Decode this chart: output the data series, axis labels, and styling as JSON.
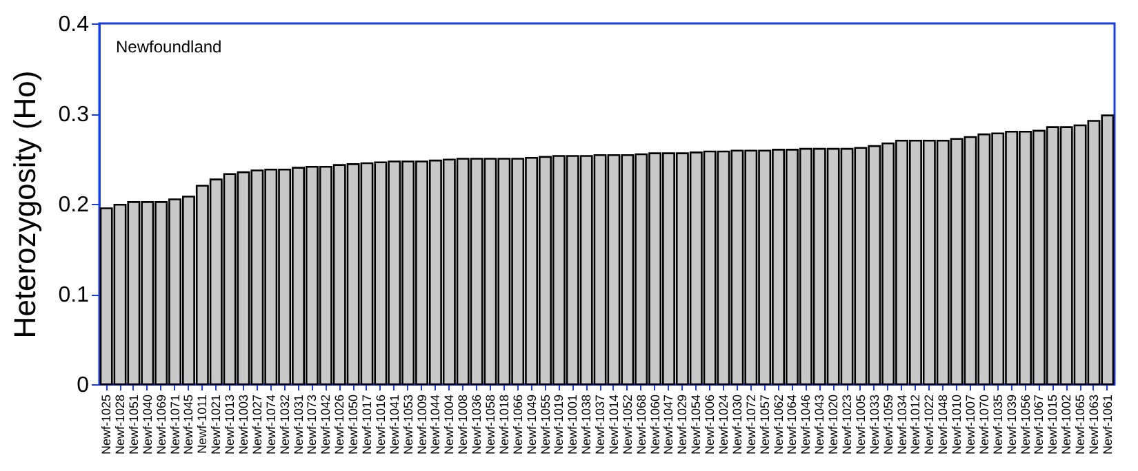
{
  "chart_data": {
    "type": "bar",
    "ylabel": "Heterozygosity (Ho)",
    "annotations": [
      "Newfoundland"
    ],
    "categories": [
      "Newf-1025",
      "Newf-1028",
      "Newf-1051",
      "Newf-1040",
      "Newf-1069",
      "Newf-1071",
      "Newf-1045",
      "Newf-1011",
      "Newf-1021",
      "Newf-1013",
      "Newf-1003",
      "Newf-1027",
      "Newf-1074",
      "Newf-1032",
      "Newf-1031",
      "Newf-1073",
      "Newf-1042",
      "Newf-1026",
      "Newf-1050",
      "Newf-1017",
      "Newf-1016",
      "Newf-1041",
      "Newf-1053",
      "Newf-1009",
      "Newf-1044",
      "Newf-1004",
      "Newf-1008",
      "Newf-1036",
      "Newf-1058",
      "Newf-1018",
      "Newf-1066",
      "Newf-1049",
      "Newf-1055",
      "Newf-1019",
      "Newf-1001",
      "Newf-1038",
      "Newf-1037",
      "Newf-1014",
      "Newf-1052",
      "Newf-1068",
      "Newf-1060",
      "Newf-1047",
      "Newf-1029",
      "Newf-1054",
      "Newf-1006",
      "Newf-1024",
      "Newf-1030",
      "Newf-1072",
      "Newf-1057",
      "Newf-1062",
      "Newf-1064",
      "Newf-1046",
      "Newf-1043",
      "Newf-1020",
      "Newf-1023",
      "Newf-1005",
      "Newf-1033",
      "Newf-1059",
      "Newf-1034",
      "Newf-1012",
      "Newf-1022",
      "Newf-1048",
      "Newf-1010",
      "Newf-1007",
      "Newf-1070",
      "Newf-1035",
      "Newf-1039",
      "Newf-1056",
      "Newf-1067",
      "Newf-1015",
      "Newf-1002",
      "Newf-1065",
      "Newf-1063",
      "Newf-1061"
    ],
    "values": [
      0.195,
      0.199,
      0.202,
      0.202,
      0.202,
      0.205,
      0.208,
      0.22,
      0.227,
      0.233,
      0.235,
      0.237,
      0.238,
      0.238,
      0.24,
      0.241,
      0.241,
      0.243,
      0.244,
      0.245,
      0.246,
      0.247,
      0.247,
      0.247,
      0.248,
      0.249,
      0.25,
      0.25,
      0.25,
      0.25,
      0.25,
      0.251,
      0.252,
      0.253,
      0.253,
      0.253,
      0.254,
      0.254,
      0.254,
      0.255,
      0.256,
      0.256,
      0.256,
      0.257,
      0.258,
      0.258,
      0.259,
      0.259,
      0.259,
      0.26,
      0.26,
      0.261,
      0.261,
      0.261,
      0.261,
      0.262,
      0.264,
      0.267,
      0.27,
      0.27,
      0.27,
      0.27,
      0.272,
      0.274,
      0.277,
      0.278,
      0.28,
      0.28,
      0.281,
      0.285,
      0.285,
      0.287,
      0.292,
      0.298
    ],
    "color": "#c8c8c8",
    "ylim": [
      0,
      0.4
    ],
    "yticks": [
      0,
      0.1,
      0.2,
      0.3,
      0.4
    ],
    "grid": false
  }
}
